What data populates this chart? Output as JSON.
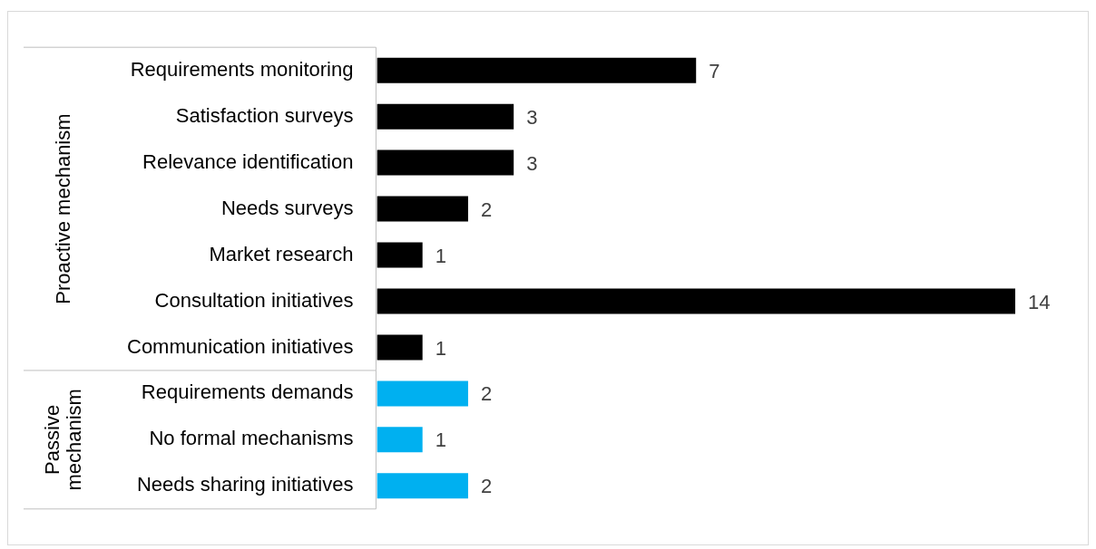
{
  "chart_data": {
    "type": "bar",
    "orientation": "horizontal",
    "categories": [
      "Requirements monitoring",
      "Satisfaction surveys",
      "Relevance identification",
      "Needs surveys",
      "Market research",
      "Consultation initiatives",
      "Communication initiatives",
      "Requirements demands",
      "No formal mechanisms",
      "Needs sharing initiatives"
    ],
    "values": [
      7,
      3,
      3,
      2,
      1,
      14,
      1,
      2,
      1,
      2
    ],
    "colors": [
      "#000000",
      "#000000",
      "#000000",
      "#000000",
      "#000000",
      "#000000",
      "#000000",
      "#00b0f0",
      "#00b0f0",
      "#00b0f0"
    ],
    "annotations": [
      "Proactive mechanism",
      "Passive mechanism"
    ],
    "data_labels": true,
    "tick_labels": "y",
    "legend": false
  }
}
